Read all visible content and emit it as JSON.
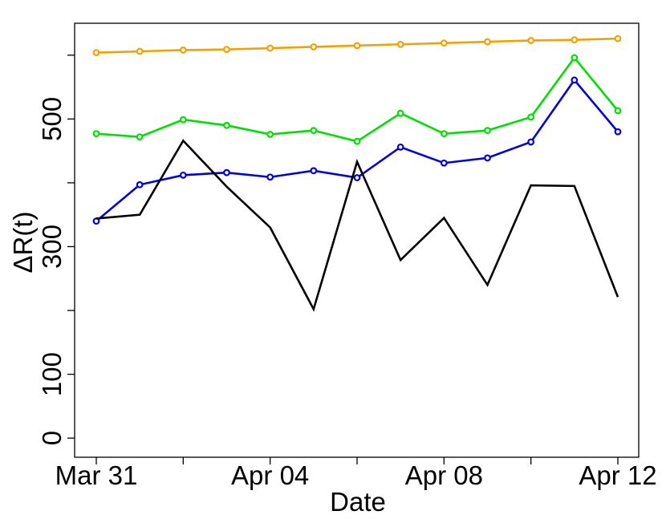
{
  "chart_data": {
    "type": "line",
    "title": "",
    "xlabel": "Date",
    "ylabel": "ΔR(t)",
    "x": [
      "Mar 31",
      "Apr 01",
      "Apr 02",
      "Apr 03",
      "Apr 04",
      "Apr 05",
      "Apr 06",
      "Apr 07",
      "Apr 08",
      "Apr 09",
      "Apr 10",
      "Apr 11",
      "Apr 12"
    ],
    "x_ticks": [
      "Mar 31",
      "Apr 04",
      "Apr 08",
      "Apr 12"
    ],
    "y_ticks": [
      0,
      100,
      300,
      500
    ],
    "ylim": [
      -30,
      650
    ],
    "grid": false,
    "legend": "none",
    "series": [
      {
        "color": "#f5a000",
        "marker": "circle",
        "values": [
          604,
          606,
          608,
          609,
          611,
          613,
          615,
          617,
          619,
          621,
          623,
          624,
          626
        ]
      },
      {
        "color": "#00e000",
        "marker": "circle",
        "values": [
          477,
          472,
          499,
          490,
          476,
          482,
          465,
          509,
          477,
          482,
          503,
          596,
          513
        ]
      },
      {
        "color": "#0000dd",
        "marker": "circle",
        "values": [
          340,
          397,
          412,
          416,
          409,
          419,
          408,
          456,
          431,
          439,
          464,
          561,
          480
        ]
      },
      {
        "color": "#000000",
        "marker": "none",
        "values": [
          344,
          350,
          466,
          394,
          330,
          202,
          433,
          279,
          345,
          240,
          396,
          395,
          221
        ]
      }
    ]
  }
}
